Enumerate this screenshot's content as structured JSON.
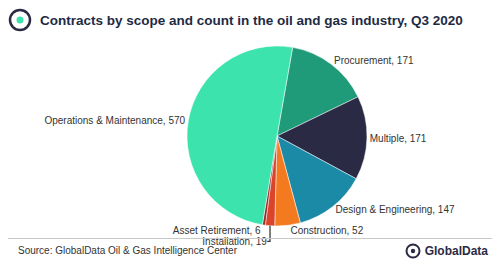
{
  "chart_data": {
    "type": "pie",
    "title": "Contracts by scope and count in the oil and gas industry, Q3 2020",
    "categories": [
      "Procurement",
      "Multiple",
      "Design & Engineering",
      "Construction",
      "Installation",
      "Asset Retirement",
      "Operations & Maintenance"
    ],
    "values": [
      171,
      171,
      147,
      52,
      19,
      6,
      570
    ],
    "value_labels": [
      "Procurement, 171",
      "Multiple, 171",
      "Design & Engineering, 147",
      "Construction, 52",
      "Installation, 19",
      "Asset Retirement, 6",
      "Operations & Maintenance, 570"
    ],
    "colors": [
      "#1f9b7a",
      "#2b2a44",
      "#1a8aa6",
      "#f47a20",
      "#d9442a",
      "#9e2a2a",
      "#3de3ad"
    ],
    "data_labels": true,
    "annotations": [
      "Source: GlobalData Oil & Gas Intelligence Center",
      "GlobalData"
    ]
  }
}
